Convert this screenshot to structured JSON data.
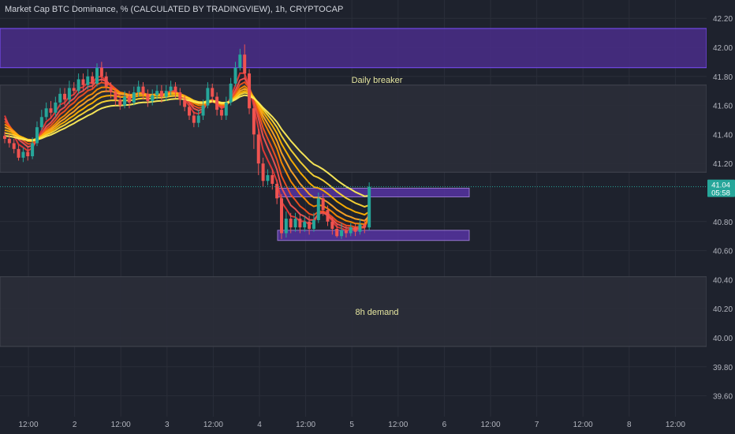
{
  "header": {
    "title": "Market Cap BTC Dominance, % (CALCULATED BY TRADINGVIEW), 1h, CRYPTOCAP"
  },
  "colors": {
    "background": "#1e222d",
    "axis_text": "#b2b5be",
    "up_candle": "#26a69a",
    "down_candle": "#ef5350",
    "zone_purple": "#5e35b1",
    "zone_gray": "#2a2e39",
    "annotation_text": "#e6e6a0",
    "price_badge": "#26a69a",
    "ribbon": [
      "#e53935",
      "#ef5350",
      "#f4511e",
      "#fb8c00",
      "#ffa726",
      "#ffb300",
      "#fdd835",
      "#ffee58"
    ]
  },
  "chart_data": {
    "type": "candlestick",
    "symbol": "BTC.D",
    "timeframe": "1h",
    "ylim": [
      39.5,
      42.25
    ],
    "y_ticks": [
      "42.20",
      "42.00",
      "41.80",
      "41.60",
      "41.40",
      "41.20",
      "40.80",
      "40.60",
      "40.40",
      "40.20",
      "40.00",
      "39.80",
      "39.60"
    ],
    "x_ticks": [
      "12:00",
      "2",
      "12:00",
      "3",
      "12:00",
      "4",
      "12:00",
      "5",
      "12:00",
      "6",
      "12:00",
      "7",
      "12:00",
      "8",
      "12:00"
    ],
    "last_price": {
      "value": "41.04",
      "countdown": "05:58"
    },
    "zones": [
      {
        "name": "upper-supply-zone",
        "from": 41.86,
        "to": 42.13,
        "style": "purple"
      },
      {
        "name": "daily-breaker-zone",
        "from": 41.14,
        "to": 41.74,
        "style": "gray",
        "label": "Daily breaker"
      },
      {
        "name": "demand-zone",
        "from": 39.94,
        "to": 40.42,
        "style": "gray",
        "label": "8h demand"
      },
      {
        "name": "range-high-box",
        "from": 40.97,
        "to": 41.03,
        "style": "purple-box"
      },
      {
        "name": "range-low-box",
        "from": 40.67,
        "to": 40.74,
        "style": "purple-box"
      }
    ],
    "candles": [
      [
        41.39,
        41.37,
        41.42,
        41.34
      ],
      [
        41.37,
        41.34,
        41.4,
        41.31
      ],
      [
        41.34,
        41.3,
        41.37,
        41.27
      ],
      [
        41.3,
        41.24,
        41.33,
        41.22
      ],
      [
        41.24,
        41.28,
        41.31,
        41.21
      ],
      [
        41.28,
        41.25,
        41.32,
        41.22
      ],
      [
        41.25,
        41.34,
        41.38,
        41.23
      ],
      [
        41.34,
        41.45,
        41.49,
        41.32
      ],
      [
        41.45,
        41.52,
        41.57,
        41.43
      ],
      [
        41.52,
        41.58,
        41.62,
        41.5
      ],
      [
        41.58,
        41.55,
        41.63,
        41.51
      ],
      [
        41.55,
        41.62,
        41.66,
        41.52
      ],
      [
        41.62,
        41.68,
        41.72,
        41.59
      ],
      [
        41.68,
        41.64,
        41.72,
        41.6
      ],
      [
        41.64,
        41.72,
        41.77,
        41.61
      ],
      [
        41.72,
        41.7,
        41.76,
        41.67
      ],
      [
        41.7,
        41.78,
        41.82,
        41.68
      ],
      [
        41.78,
        41.74,
        41.82,
        41.7
      ],
      [
        41.74,
        41.8,
        41.85,
        41.71
      ],
      [
        41.8,
        41.75,
        41.83,
        41.71
      ],
      [
        41.75,
        41.86,
        41.89,
        41.73
      ],
      [
        41.86,
        41.8,
        41.9,
        41.76
      ],
      [
        41.8,
        41.73,
        41.83,
        41.69
      ],
      [
        41.73,
        41.69,
        41.76,
        41.65
      ],
      [
        41.69,
        41.64,
        41.72,
        41.6
      ],
      [
        41.64,
        41.6,
        41.67,
        41.57
      ],
      [
        41.6,
        41.66,
        41.7,
        41.58
      ],
      [
        41.66,
        41.62,
        41.7,
        41.58
      ],
      [
        41.62,
        41.69,
        41.73,
        41.6
      ],
      [
        41.69,
        41.73,
        41.77,
        41.66
      ],
      [
        41.73,
        41.68,
        41.76,
        41.64
      ],
      [
        41.68,
        41.63,
        41.71,
        41.59
      ],
      [
        41.63,
        41.67,
        41.71,
        41.6
      ],
      [
        41.67,
        41.7,
        41.74,
        41.64
      ],
      [
        41.7,
        41.66,
        41.74,
        41.62
      ],
      [
        41.66,
        41.7,
        41.74,
        41.63
      ],
      [
        41.7,
        41.73,
        41.77,
        41.67
      ],
      [
        41.73,
        41.69,
        41.76,
        41.65
      ],
      [
        41.69,
        41.64,
        41.72,
        41.6
      ],
      [
        41.64,
        41.59,
        41.67,
        41.56
      ],
      [
        41.59,
        41.53,
        41.62,
        41.5
      ],
      [
        41.53,
        41.48,
        41.56,
        41.45
      ],
      [
        41.48,
        41.53,
        41.57,
        41.45
      ],
      [
        41.53,
        41.6,
        41.64,
        41.5
      ],
      [
        41.6,
        41.72,
        41.76,
        41.58
      ],
      [
        41.72,
        41.66,
        41.75,
        41.62
      ],
      [
        41.66,
        41.57,
        41.69,
        41.53
      ],
      [
        41.57,
        41.53,
        41.6,
        41.5
      ],
      [
        41.53,
        41.62,
        41.66,
        41.5
      ],
      [
        41.62,
        41.75,
        41.79,
        41.6
      ],
      [
        41.75,
        41.86,
        41.9,
        41.73
      ],
      [
        41.86,
        41.95,
        41.99,
        41.84
      ],
      [
        41.95,
        41.82,
        42.02,
        41.78
      ],
      [
        41.82,
        41.58,
        41.85,
        41.54
      ],
      [
        41.58,
        41.4,
        41.62,
        41.3
      ],
      [
        41.4,
        41.2,
        41.44,
        41.12
      ],
      [
        41.2,
        41.08,
        41.24,
        41.04
      ],
      [
        41.08,
        41.12,
        41.16,
        41.05
      ],
      [
        41.12,
        41.06,
        41.16,
        41.02
      ],
      [
        41.06,
        40.96,
        41.09,
        40.92
      ],
      [
        40.96,
        40.72,
        40.99,
        40.68
      ],
      [
        40.72,
        40.82,
        40.87,
        40.69
      ],
      [
        40.82,
        40.76,
        40.86,
        40.72
      ],
      [
        40.76,
        40.82,
        40.86,
        40.73
      ],
      [
        40.82,
        40.76,
        40.86,
        40.72
      ],
      [
        40.76,
        40.8,
        40.84,
        40.73
      ],
      [
        40.8,
        40.75,
        40.84,
        40.71
      ],
      [
        40.75,
        40.81,
        40.86,
        40.73
      ],
      [
        40.81,
        40.96,
        41.0,
        40.79
      ],
      [
        40.96,
        40.88,
        40.99,
        40.84
      ],
      [
        40.88,
        40.8,
        40.91,
        40.77
      ],
      [
        40.8,
        40.75,
        40.83,
        40.71
      ],
      [
        40.75,
        40.7,
        40.78,
        40.69
      ],
      [
        40.7,
        40.74,
        40.79,
        40.68
      ],
      [
        40.74,
        40.72,
        40.77,
        40.69
      ],
      [
        40.72,
        40.76,
        40.79,
        40.7
      ],
      [
        40.76,
        40.73,
        40.79,
        40.7
      ],
      [
        40.73,
        40.78,
        40.82,
        40.71
      ],
      [
        40.78,
        40.76,
        40.81,
        40.72
      ],
      [
        40.76,
        41.04,
        41.07,
        40.74
      ]
    ],
    "ribbon_periods": [
      4,
      6,
      8,
      11,
      14,
      18,
      23,
      30
    ]
  }
}
